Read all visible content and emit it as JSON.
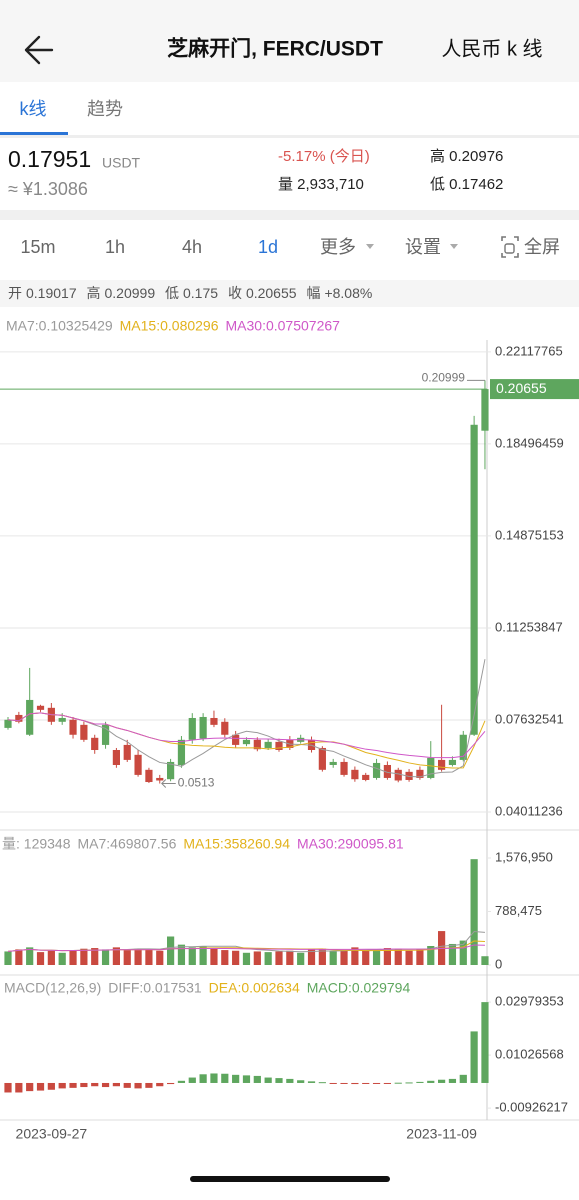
{
  "header": {
    "title": "芝麻开门, FERC/USDT",
    "right": "人民币 k 线"
  },
  "tabs": [
    "k线",
    "趋势"
  ],
  "price": {
    "last": "0.17951",
    "unit": "USDT",
    "cny": "≈ ¥1.3086",
    "change": "-5.17% (今日)",
    "volume": "量 2,933,710",
    "high": "高 0.20976",
    "low": "低 0.17462"
  },
  "intervals": [
    "15m",
    "1h",
    "4h",
    "1d",
    "更多",
    "设置",
    "全屏"
  ],
  "chart_data": [
    {
      "type": "candlestick",
      "up_color": "#5ea65e",
      "down_color": "#c9493f",
      "ohlc_labels": [
        "开",
        "高",
        "低",
        "收",
        "幅"
      ],
      "change": "+8.08%",
      "legend": [
        {
          "text": "MA7:0.10325429",
          "period": 7,
          "color": "#9a9a9a"
        },
        {
          "text": "MA15:0.080296",
          "period": 15,
          "color": "#e2b21c"
        },
        {
          "text": "MA30:0.07507267",
          "period": 30,
          "color": "#cf57c8"
        }
      ],
      "x": [
        null,
        null,
        null,
        null,
        "2023-09-27",
        null,
        null,
        null,
        null,
        null,
        null,
        null,
        null,
        null,
        null,
        null,
        null,
        null,
        null,
        null,
        null,
        null,
        null,
        null,
        null,
        null,
        null,
        null,
        null,
        null,
        null,
        null,
        null,
        null,
        null,
        null,
        null,
        null,
        null,
        null,
        "2023-11-09",
        null,
        null,
        null,
        null
      ],
      "open": [
        0.0732,
        0.0783,
        0.0705,
        0.0819,
        0.0811,
        0.0756,
        0.0764,
        0.0744,
        0.0693,
        0.0665,
        0.0645,
        0.0665,
        0.0626,
        0.0567,
        0.0535,
        0.053,
        0.0586,
        0.0685,
        0.069,
        0.0771,
        0.0756,
        0.0705,
        0.0668,
        0.0685,
        0.0653,
        0.0677,
        0.0685,
        0.0677,
        0.0685,
        0.0653,
        0.0586,
        0.0598,
        0.0567,
        0.0547,
        0.0535,
        0.0586,
        0.0567,
        0.0559,
        0.0567,
        0.0535,
        0.0606,
        0.0586,
        0.0606,
        0.0705,
        0.19017
      ],
      "high": [
        0.0775,
        0.0795,
        0.0968,
        0.0823,
        0.083,
        0.079,
        0.0775,
        0.0756,
        0.0705,
        0.0756,
        0.0653,
        0.0685,
        0.0645,
        0.0575,
        0.0547,
        0.061,
        0.07,
        0.079,
        0.079,
        0.08,
        0.077,
        0.072,
        0.0695,
        0.0695,
        0.069,
        0.069,
        0.07,
        0.0705,
        0.0698,
        0.066,
        0.061,
        0.0612,
        0.058,
        0.0555,
        0.061,
        0.06,
        0.0575,
        0.057,
        0.058,
        0.068,
        0.0823,
        0.062,
        0.072,
        0.196,
        0.20999
      ],
      "low": [
        0.0725,
        0.075,
        0.07,
        0.0795,
        0.0744,
        0.0744,
        0.069,
        0.0677,
        0.063,
        0.065,
        0.0575,
        0.0598,
        0.054,
        0.0515,
        0.0513,
        0.0522,
        0.0575,
        0.067,
        0.068,
        0.0735,
        0.0695,
        0.0655,
        0.066,
        0.064,
        0.0645,
        0.0638,
        0.0645,
        0.067,
        0.0635,
        0.056,
        0.0575,
        0.054,
        0.052,
        0.0522,
        0.0528,
        0.0528,
        0.0518,
        0.052,
        0.0528,
        0.053,
        0.056,
        0.058,
        0.06,
        0.07,
        0.175
      ],
      "close": [
        0.0764,
        0.0756,
        0.0842,
        0.0803,
        0.0756,
        0.0771,
        0.0705,
        0.0685,
        0.0645,
        0.0744,
        0.0586,
        0.0606,
        0.0547,
        0.0519,
        0.0525,
        0.0598,
        0.0685,
        0.0771,
        0.0775,
        0.0744,
        0.0705,
        0.0665,
        0.0685,
        0.0648,
        0.0677,
        0.0645,
        0.0653,
        0.0693,
        0.0645,
        0.0567,
        0.0598,
        0.0547,
        0.053,
        0.0527,
        0.0594,
        0.0535,
        0.0525,
        0.0527,
        0.0535,
        0.0614,
        0.0567,
        0.0606,
        0.0705,
        0.1925,
        0.20655
      ],
      "ylim": [
        0.0338,
        0.2239
      ],
      "yticks": [
        0.04011236,
        0.07632541,
        0.11253847,
        0.14875153,
        0.18496459,
        0.22117765
      ],
      "grid": true
    },
    {
      "type": "volume",
      "legend": [
        {
          "text": "量: 129348",
          "color": "#9a9a9a"
        },
        {
          "text": "MA7:469807.56",
          "period": 7,
          "color": "#9a9a9a"
        },
        {
          "text": "MA15:358260.94",
          "period": 15,
          "color": "#e2b21c"
        },
        {
          "text": "MA30:290095.81",
          "period": 30,
          "color": "#cf57c8"
        }
      ],
      "values": [
        200000,
        230000,
        260000,
        190000,
        210000,
        180000,
        220000,
        240000,
        250000,
        230000,
        260000,
        220000,
        240000,
        230000,
        210000,
        420000,
        300000,
        260000,
        280000,
        240000,
        220000,
        210000,
        180000,
        200000,
        190000,
        200000,
        210000,
        180000,
        230000,
        240000,
        200000,
        210000,
        260000,
        220000,
        230000,
        250000,
        240000,
        210000,
        230000,
        280000,
        500000,
        310000,
        360000,
        1560000,
        129348
      ],
      "ylim": [
        0,
        1695000
      ],
      "yticks": [
        0,
        {
          "value": 788475,
          "label": "788,475"
        },
        {
          "value": 1576950,
          "label": "1,576,950"
        }
      ]
    },
    {
      "type": "macd",
      "up_color": "#5ea65e",
      "down_color": "#c9493f",
      "legend": [
        {
          "text": "MACD(12,26,9)",
          "color": "#9a9a9a"
        },
        {
          "text": "DIFF:0.017531",
          "color": "#9a9a9a"
        },
        {
          "text": "DEA:0.002634",
          "color": "#e2b21c"
        },
        {
          "text": "MACD:0.029794",
          "color": "#5ea65e"
        }
      ],
      "values": [
        -0.0035,
        -0.0035,
        -0.003,
        -0.0028,
        -0.0025,
        -0.002,
        -0.0018,
        -0.0015,
        -0.0012,
        -0.0015,
        -0.0012,
        -0.0018,
        -0.002,
        -0.0018,
        -0.0012,
        -0.0004,
        0.0008,
        0.002,
        0.0032,
        0.0035,
        0.0034,
        0.003,
        0.0028,
        0.0026,
        0.002,
        0.0018,
        0.0015,
        0.001,
        0.0006,
        0.0003,
        -0.0002,
        -0.0003,
        -0.0004,
        -0.0003,
        -0.0002,
        -0.0001,
        0.0001,
        0.0002,
        0.0004,
        0.0008,
        0.0012,
        0.0015,
        0.003,
        0.019,
        0.029794
      ],
      "ylim": [
        -0.0118,
        0.0361
      ],
      "yticks": [
        -0.00926217,
        0.01026568,
        0.02979353
      ]
    }
  ]
}
